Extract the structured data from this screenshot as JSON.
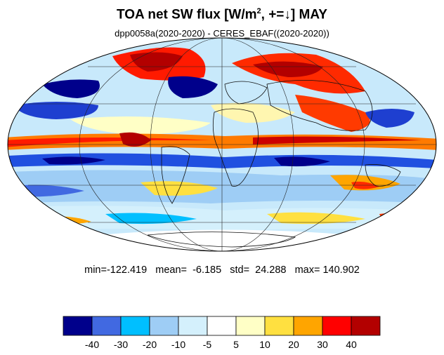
{
  "header": {
    "title_main": "TOA net SW flux [W/m",
    "title_sup": "2",
    "title_rest": ", +=↓]  MAY",
    "subtitle": "dpp0058a(2020-2020) - CERES_EBAF((2020-2020))"
  },
  "stats": {
    "text": "min=-122.419   mean=  -6.185   std=  24.288   max= 140.902"
  },
  "colorbar": {
    "colors": [
      "#00008b",
      "#4169e1",
      "#00bfff",
      "#9ecdf5",
      "#d4f0fc",
      "#ffffff",
      "#ffffc6",
      "#ffe040",
      "#ffa500",
      "#ff0000",
      "#b30000"
    ],
    "labels": [
      "-40",
      "-30",
      "-20",
      "-10",
      "-5",
      "5",
      "10",
      "20",
      "30",
      "40"
    ]
  },
  "map": {
    "projection": "Mollweide",
    "field": "difference dpp0058a - CERES_EBAF, net SW flux, May"
  }
}
